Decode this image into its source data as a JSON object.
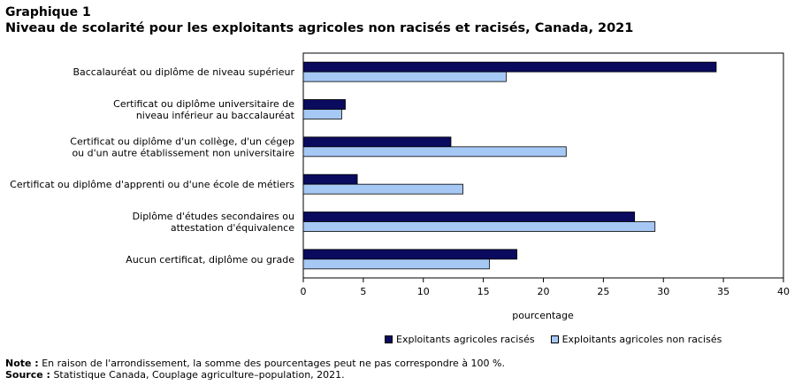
{
  "header": {
    "label": "Graphique 1",
    "title": "Niveau de scolarité pour les exploitants agricoles non racisés et racisés, Canada, 2021"
  },
  "chart_data": {
    "type": "bar",
    "orientation": "horizontal",
    "categories": [
      [
        "Baccalauréat ou diplôme de niveau supérieur"
      ],
      [
        "Certificat ou diplôme universitaire de",
        "niveau inférieur au baccalauréat"
      ],
      [
        "Certificat ou diplôme d'un collège, d'un cégep",
        "ou d'un autre établissement non universitaire"
      ],
      [
        "Certificat ou diplôme d'apprenti ou d'une école de métiers"
      ],
      [
        "Diplôme d'études secondaires ou",
        "attestation d'équivalence"
      ],
      [
        "Aucun certificat, diplôme ou grade"
      ]
    ],
    "series": [
      {
        "name": "Exploitants agricoles racisés",
        "color": "#0a0a5e",
        "values": [
          34.4,
          3.5,
          12.3,
          4.5,
          27.6,
          17.8
        ]
      },
      {
        "name": "Exploitants agricoles non racisés",
        "color": "#a6c8f5",
        "values": [
          16.9,
          3.2,
          21.9,
          13.3,
          29.3,
          15.5
        ]
      }
    ],
    "xlabel": "pourcentage",
    "xlim": [
      0,
      40
    ],
    "xticks": [
      "0",
      "5",
      "10",
      "15",
      "20",
      "25",
      "30",
      "35",
      "40"
    ],
    "grid": false,
    "legend_position": "bottom"
  },
  "notes": {
    "note_label": "Note :",
    "note_text": "En raison de l'arrondissement, la somme des pourcentages peut ne pas correspondre à 100 %.",
    "source_label": "Source :",
    "source_text": "Statistique Canada, Couplage agriculture–population, 2021."
  }
}
